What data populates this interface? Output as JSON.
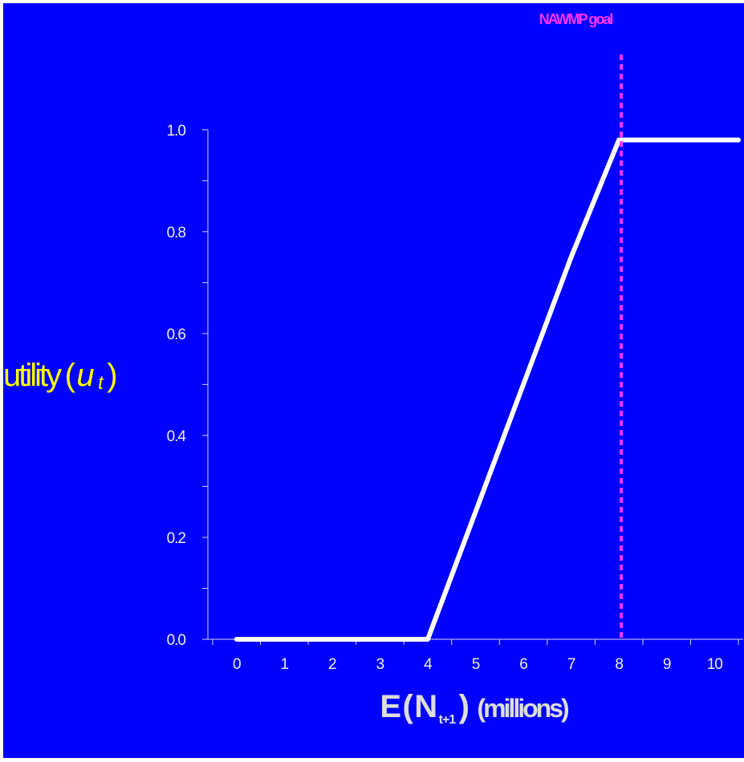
{
  "colors": {
    "background": "#0000ff",
    "axis": "#d8d8ff",
    "tick_text": "#eeeeee",
    "series_line": "#ffffff",
    "goal_line": "#ff33ff",
    "ylabel": "#ffff00",
    "xlabel": "#dddddd"
  },
  "labels": {
    "ylabel_main": "utility",
    "ylabel_open": "(",
    "ylabel_var": "u",
    "ylabel_sub": "t",
    "ylabel_close": ")",
    "xlabel_e": "E",
    "xlabel_open": "(",
    "xlabel_n": "N",
    "xlabel_sub": "t+1",
    "xlabel_close": ")",
    "xlabel_unit": "(millions)",
    "goal_annotation": "NAWMP goal"
  },
  "chart_data": {
    "type": "line",
    "title": "",
    "xlabel": "E(Nt+1) (millions)",
    "ylabel": "utility (ut)",
    "x_ticks": [
      "0",
      "1",
      "2",
      "3",
      "4",
      "5",
      "6",
      "7",
      "8",
      "9",
      "10"
    ],
    "y_ticks": [
      "0.0",
      "0.2",
      "0.4",
      "0.6",
      "0.8",
      "1.0"
    ],
    "xlim": [
      -0.6,
      10.6
    ],
    "ylim": [
      0,
      1.05
    ],
    "grid": false,
    "series": [
      {
        "x": [
          0,
          1,
          2,
          3,
          4,
          5,
          6,
          7,
          8,
          8.1,
          9,
          10,
          10.5
        ],
        "y": [
          0,
          0,
          0,
          0,
          0,
          0.25,
          0.5,
          0.75,
          0.98,
          0.98,
          0.98,
          0.98,
          0.98
        ]
      }
    ],
    "annotations": [
      {
        "type": "vline",
        "x": 8.05,
        "text": "NAWMP goal",
        "style": "dashed"
      }
    ]
  }
}
